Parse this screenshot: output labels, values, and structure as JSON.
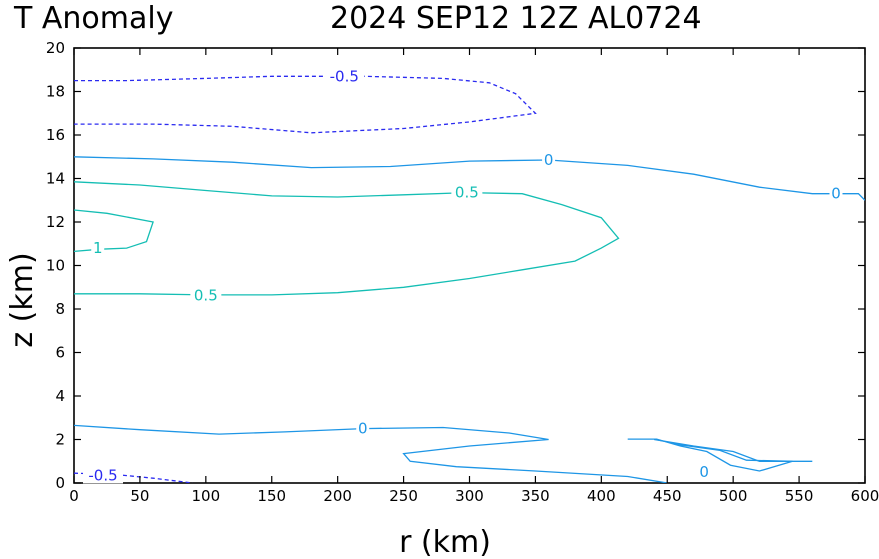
{
  "title_left": "T Anomaly",
  "title_right": "2024 SEP12 12Z AL0724",
  "chart_data": {
    "type": "contour",
    "title": "T Anomaly",
    "subtitle": "2024 SEP12 12Z AL0724",
    "xlabel": "r (km)",
    "ylabel": "z (km)",
    "xlim": [
      0,
      600
    ],
    "ylim": [
      0,
      20
    ],
    "xticks": [
      0,
      50,
      100,
      150,
      200,
      250,
      300,
      350,
      400,
      450,
      500,
      550,
      600
    ],
    "yticks": [
      0,
      2,
      4,
      6,
      8,
      10,
      12,
      14,
      16,
      18,
      20
    ],
    "grid": false,
    "colors": {
      "neg": "#2a2af0",
      "zero": "#1e96e6",
      "pos": "#14beb4"
    },
    "contours": [
      {
        "level": -0.5,
        "style": "dashed",
        "color_key": "neg",
        "label": "-0.5",
        "label_at": [
          205,
          18.7
        ],
        "points": [
          [
            0,
            18.5
          ],
          [
            40,
            18.5
          ],
          [
            100,
            18.6
          ],
          [
            150,
            18.7
          ],
          [
            220,
            18.7
          ],
          [
            280,
            18.6
          ],
          [
            315,
            18.4
          ],
          [
            335,
            17.9
          ],
          [
            350,
            17.0
          ],
          [
            300,
            16.6
          ],
          [
            250,
            16.3
          ],
          [
            180,
            16.1
          ],
          [
            120,
            16.4
          ],
          [
            60,
            16.5
          ],
          [
            0,
            16.5
          ]
        ]
      },
      {
        "level": -0.5,
        "style": "dashed",
        "color_key": "neg",
        "label": "-0.5",
        "label_at": [
          22,
          0.35
        ],
        "points": [
          [
            0,
            0.45
          ],
          [
            30,
            0.4
          ],
          [
            60,
            0.22
          ],
          [
            90,
            0.0
          ]
        ]
      },
      {
        "level": 0,
        "style": "solid",
        "color_key": "zero",
        "label": "0",
        "label_at": [
          360,
          14.85
        ],
        "points": [
          [
            0,
            15.0
          ],
          [
            60,
            14.9
          ],
          [
            120,
            14.75
          ],
          [
            180,
            14.5
          ],
          [
            240,
            14.55
          ],
          [
            300,
            14.8
          ],
          [
            360,
            14.85
          ],
          [
            420,
            14.6
          ],
          [
            470,
            14.2
          ],
          [
            520,
            13.6
          ],
          [
            560,
            13.3
          ],
          [
            595,
            13.3
          ],
          [
            600,
            13.0
          ]
        ]
      },
      {
        "level": 0,
        "style": "solid",
        "color_key": "zero",
        "label": "0",
        "label_at": [
          578,
          13.3
        ],
        "points": []
      },
      {
        "level": 0,
        "style": "solid",
        "color_key": "zero",
        "label": "0",
        "label_at": [
          219,
          2.5
        ],
        "points": [
          [
            0,
            2.65
          ],
          [
            50,
            2.45
          ],
          [
            110,
            2.25
          ],
          [
            160,
            2.35
          ],
          [
            219,
            2.5
          ],
          [
            280,
            2.55
          ],
          [
            330,
            2.3
          ],
          [
            360,
            2.0
          ],
          [
            300,
            1.7
          ],
          [
            250,
            1.35
          ],
          [
            255,
            1.0
          ],
          [
            290,
            0.75
          ],
          [
            350,
            0.55
          ],
          [
            420,
            0.3
          ],
          [
            450,
            0.0
          ]
        ]
      },
      {
        "level": 0,
        "style": "solid",
        "color_key": "zero",
        "label": "0",
        "label_at": [
          478,
          0.5
        ],
        "points": [
          [
            420,
            2.02
          ],
          [
            442,
            2.02
          ],
          [
            460,
            1.7
          ],
          [
            480,
            1.45
          ],
          [
            498,
            0.82
          ],
          [
            520,
            0.55
          ],
          [
            545,
            1.0
          ],
          [
            510,
            1.05
          ],
          [
            490,
            1.5
          ],
          [
            460,
            1.75
          ],
          [
            440,
            2.02
          ],
          [
            420,
            2.02
          ]
        ]
      },
      {
        "level": 0,
        "style": "solid",
        "color_key": "zero",
        "label": "",
        "label_at": [
          0,
          0
        ],
        "points": [
          [
            440,
            2.0
          ],
          [
            470,
            1.7
          ],
          [
            500,
            1.45
          ],
          [
            520,
            1.0
          ],
          [
            545,
            1.0
          ],
          [
            560,
            1.0
          ]
        ]
      },
      {
        "level": 0.5,
        "style": "solid",
        "color_key": "pos",
        "label": "0.5",
        "label_at": [
          298,
          13.35
        ],
        "points": [
          [
            0,
            13.85
          ],
          [
            50,
            13.7
          ],
          [
            100,
            13.45
          ],
          [
            150,
            13.2
          ],
          [
            200,
            13.15
          ],
          [
            250,
            13.25
          ],
          [
            298,
            13.35
          ],
          [
            340,
            13.3
          ],
          [
            370,
            12.8
          ],
          [
            400,
            12.2
          ],
          [
            413,
            11.25
          ],
          [
            400,
            10.8
          ],
          [
            380,
            10.2
          ],
          [
            340,
            9.8
          ],
          [
            300,
            9.4
          ],
          [
            250,
            9.0
          ],
          [
            200,
            8.75
          ],
          [
            150,
            8.65
          ],
          [
            100,
            8.65
          ],
          [
            50,
            8.7
          ],
          [
            0,
            8.7
          ]
        ]
      },
      {
        "level": 0.5,
        "style": "solid",
        "color_key": "pos",
        "label": "0.5",
        "label_at": [
          100,
          8.62
        ],
        "points": []
      },
      {
        "level": 1,
        "style": "solid",
        "color_key": "pos",
        "label": "1",
        "label_at": [
          18,
          10.8
        ],
        "points": [
          [
            0,
            12.55
          ],
          [
            25,
            12.4
          ],
          [
            60,
            12.0
          ],
          [
            55,
            11.1
          ],
          [
            40,
            10.8
          ],
          [
            20,
            10.75
          ],
          [
            0,
            10.65
          ]
        ]
      }
    ]
  }
}
